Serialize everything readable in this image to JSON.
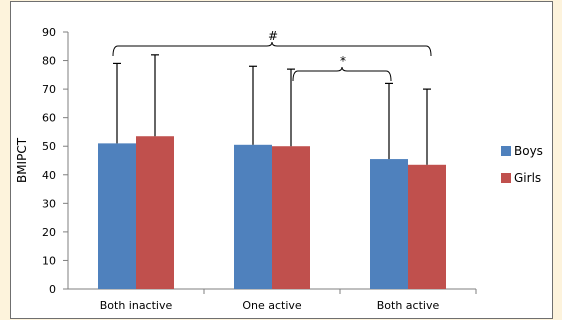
{
  "chart_data": {
    "type": "bar",
    "ylabel": "BMIPCT",
    "xlabel": "",
    "ylim": [
      0,
      90
    ],
    "yticks": [
      0,
      10,
      20,
      30,
      40,
      50,
      60,
      70,
      80,
      90
    ],
    "ytick_labels": [
      "0",
      "10",
      "20",
      "30",
      "40",
      "50",
      "60",
      "70",
      "80",
      "90"
    ],
    "categories": [
      "Both inactive",
      "One active",
      "Both active"
    ],
    "series": [
      {
        "name": "Boys",
        "color": "#4f81bd",
        "values": [
          51,
          50.5,
          45.5
        ],
        "error_upper": [
          79,
          78,
          72
        ]
      },
      {
        "name": "Girls",
        "color": "#c0504d",
        "values": [
          53.5,
          50,
          43.5
        ],
        "error_upper": [
          82,
          77,
          70
        ]
      }
    ],
    "annotations": [
      {
        "text": "#",
        "span": [
          "Both inactive",
          "Both active"
        ]
      },
      {
        "text": "*",
        "span": [
          "One active",
          "Both active"
        ]
      }
    ],
    "legend_position": "right",
    "grid": false
  }
}
